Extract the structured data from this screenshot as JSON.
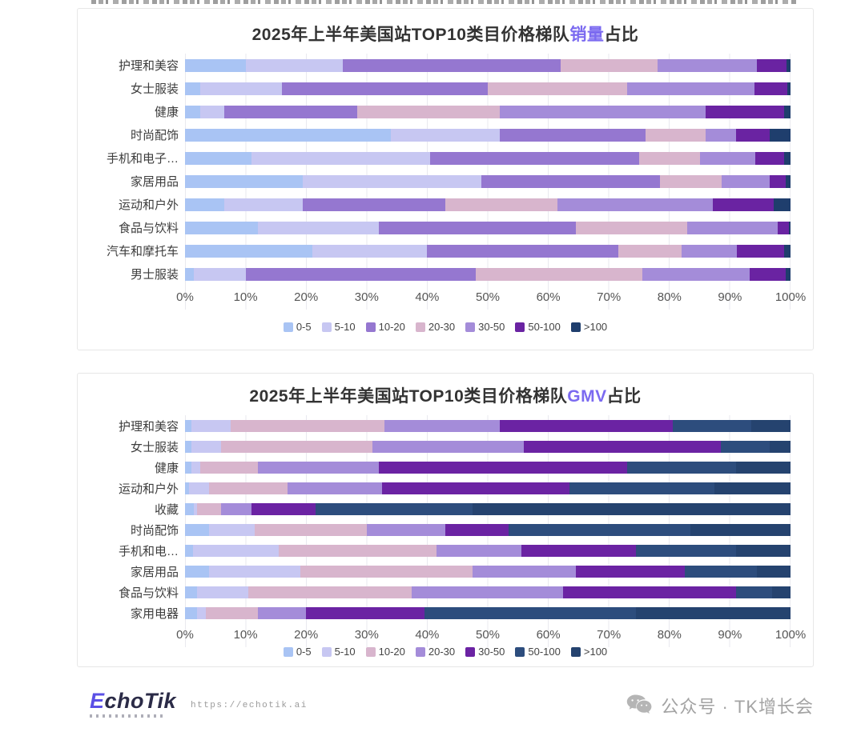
{
  "footer": {
    "logo_first_letter": "E",
    "logo_rest": "choTik",
    "url": "https://echotik.ai",
    "wechat_label": "公众号 · TK增长会"
  },
  "chart_data": [
    {
      "type": "bar",
      "variant": "horizontal-stacked-100",
      "title_prefix": "2025年上半年美国站TOP10类目价格梯队",
      "title_accent": "销量",
      "title_suffix": "占比",
      "accent_color": "#7b6af0",
      "xlim": [
        0,
        100
      ],
      "grid": true,
      "legend_position": "bottom",
      "x_ticks": [
        "0%",
        "10%",
        "20%",
        "30%",
        "40%",
        "50%",
        "60%",
        "70%",
        "80%",
        "90%",
        "100%"
      ],
      "categories": [
        "护理和美容",
        "女士服装",
        "健康",
        "时尚配饰",
        "手机和电子…",
        "家居用品",
        "运动和户外",
        "食品与饮料",
        "汽车和摩托车",
        "男士服装"
      ],
      "colors": [
        "#a9c4f4",
        "#c7c7f2",
        "#9577d0",
        "#d8b5cd",
        "#a48cd9",
        "#6a23a2",
        "#1f3e6d"
      ],
      "series": [
        {
          "name": "0-5",
          "values": [
            10,
            2.5,
            2.5,
            34,
            11,
            19.5,
            6.5,
            12,
            21,
            1.5
          ]
        },
        {
          "name": "5-10",
          "values": [
            16,
            13.5,
            4,
            18,
            29.5,
            29.5,
            13,
            20,
            19,
            8.5
          ]
        },
        {
          "name": "10-20",
          "values": [
            36,
            34,
            22,
            24,
            34.5,
            29.5,
            23.5,
            32.5,
            31.5,
            38
          ]
        },
        {
          "name": "20-30",
          "values": [
            16,
            23,
            23.5,
            10,
            10,
            10.1,
            18.5,
            18.5,
            10.5,
            27.5
          ]
        },
        {
          "name": "30-50",
          "values": [
            16.4,
            21,
            34,
            5,
            9.2,
            7.9,
            25.7,
            14.9,
            9.1,
            17.7
          ]
        },
        {
          "name": "50-100",
          "values": [
            5,
            5.5,
            13,
            5.5,
            4.7,
            2.7,
            10,
            1.8,
            7.8,
            6
          ]
        },
        {
          "name": ">100",
          "values": [
            0.6,
            0.5,
            1,
            3.5,
            1.1,
            0.8,
            2.8,
            0.3,
            1.1,
            0.8
          ]
        }
      ]
    },
    {
      "type": "bar",
      "variant": "horizontal-stacked-100",
      "title_prefix": "2025年上半年美国站TOP10类目价格梯队",
      "title_accent": "GMV",
      "title_suffix": "占比",
      "accent_color": "#7b6af0",
      "xlim": [
        0,
        100
      ],
      "grid": true,
      "legend_position": "bottom",
      "x_ticks": [
        "0%",
        "10%",
        "20%",
        "30%",
        "40%",
        "50%",
        "60%",
        "70%",
        "80%",
        "90%",
        "100%"
      ],
      "categories": [
        "护理和美容",
        "女士服装",
        "健康",
        "运动和户外",
        "收藏",
        "时尚配饰",
        "手机和电…",
        "家居用品",
        "食品与饮料",
        "家用电器"
      ],
      "colors": [
        "#a9c4f4",
        "#c7c7f2",
        "#d8b5cd",
        "#a48cd9",
        "#6b23a3",
        "#2d4d7d",
        "#25436f"
      ],
      "series": [
        {
          "name": "0-5",
          "values": [
            1,
            1,
            1,
            0.7,
            1.5,
            4,
            1.3,
            4,
            2,
            2
          ]
        },
        {
          "name": "5-10",
          "values": [
            6.5,
            5,
            1.5,
            3.3,
            0.5,
            7.5,
            14.2,
            15,
            8.5,
            1.5
          ]
        },
        {
          "name": "10-20",
          "values": [
            25.5,
            25,
            9.5,
            13,
            4,
            18.5,
            26,
            28.5,
            27,
            8.5
          ]
        },
        {
          "name": "20-30",
          "values": [
            19,
            25,
            20,
            15.5,
            5,
            13,
            14,
            17,
            25,
            8
          ]
        },
        {
          "name": "30-50",
          "values": [
            28.5,
            32.5,
            41,
            31,
            10.5,
            10.5,
            19,
            18,
            28.5,
            19.5
          ]
        },
        {
          "name": "50-100",
          "values": [
            13,
            8,
            18,
            24,
            26,
            30,
            16.5,
            12,
            6,
            35
          ]
        },
        {
          "name": ">100",
          "values": [
            6.5,
            3.5,
            9,
            12.5,
            52.5,
            16.5,
            9,
            5.5,
            3,
            25.5
          ]
        }
      ]
    }
  ]
}
